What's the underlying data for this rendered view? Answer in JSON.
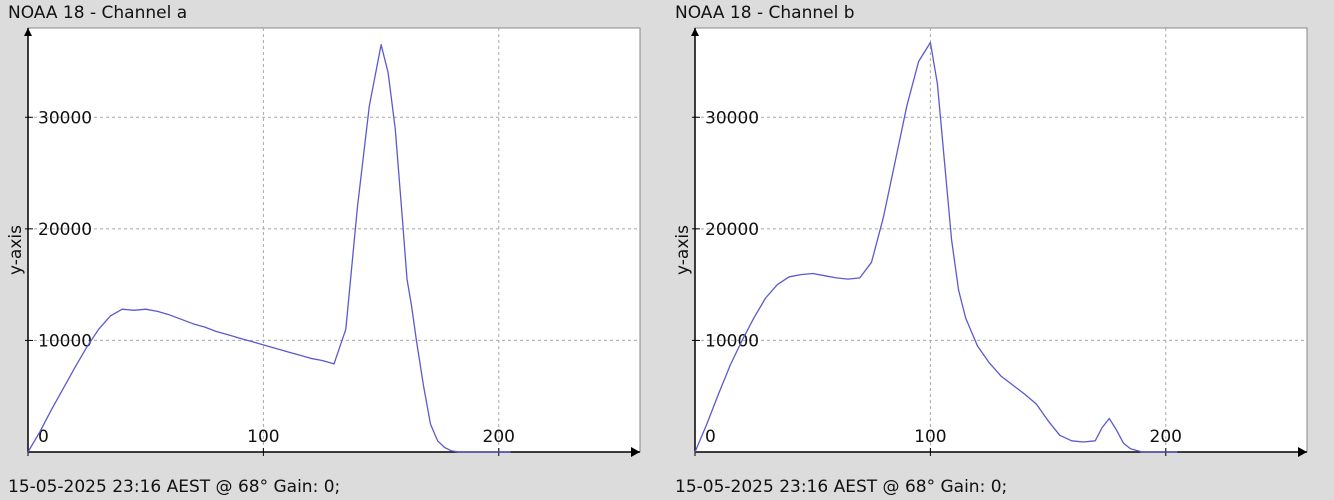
{
  "panels": [
    {
      "title": "NOAA 18 - Channel a",
      "footer": "15-05-2025 23:16 AEST @ 68° Gain: 0;"
    },
    {
      "title": "NOAA 18 - Channel b",
      "footer": "15-05-2025 23:16 AEST @ 68° Gain: 0;"
    }
  ],
  "colors": {
    "background": "#dcdcdc",
    "plot_background": "#ffffff",
    "line": "#5a5ad0",
    "grid": "#a8a8a8",
    "axis": "#000000"
  },
  "chart_data": [
    {
      "type": "line",
      "title": "NOAA 18 - Channel a",
      "xlabel": "",
      "ylabel": "y-axis",
      "xlim": [
        0,
        260
      ],
      "ylim": [
        0,
        38000
      ],
      "x_ticks": [
        0,
        100,
        200
      ],
      "y_ticks": [
        10000,
        20000,
        30000
      ],
      "grid": true,
      "series": [
        {
          "x": [
            0,
            5,
            10,
            15,
            20,
            25,
            30,
            35,
            40,
            45,
            50,
            55,
            60,
            65,
            70,
            75,
            80,
            85,
            90,
            95,
            100,
            105,
            110,
            115,
            120,
            125,
            130,
            135,
            140,
            145,
            150,
            153,
            156,
            159,
            161,
            163,
            165,
            168,
            171,
            174,
            177,
            180,
            183,
            186,
            190,
            195,
            200,
            205
          ],
          "y": [
            0,
            1800,
            3800,
            5700,
            7600,
            9400,
            11000,
            12200,
            12800,
            12700,
            12800,
            12600,
            12300,
            11900,
            11500,
            11200,
            10800,
            10500,
            10200,
            9900,
            9600,
            9300,
            9000,
            8700,
            8400,
            8200,
            7900,
            11000,
            22000,
            31000,
            36500,
            34000,
            29000,
            21000,
            15500,
            13000,
            10000,
            6000,
            2500,
            1000,
            400,
            100,
            0,
            0,
            0,
            0,
            0,
            0
          ]
        }
      ]
    },
    {
      "type": "line",
      "title": "NOAA 18 - Channel b",
      "xlabel": "",
      "ylabel": "y-axis",
      "xlim": [
        0,
        260
      ],
      "ylim": [
        0,
        38000
      ],
      "x_ticks": [
        0,
        100,
        200
      ],
      "y_ticks": [
        10000,
        20000,
        30000
      ],
      "grid": true,
      "series": [
        {
          "x": [
            0,
            5,
            10,
            15,
            20,
            25,
            30,
            35,
            40,
            45,
            50,
            55,
            60,
            65,
            70,
            75,
            80,
            85,
            90,
            95,
            100,
            103,
            106,
            109,
            112,
            115,
            120,
            125,
            130,
            135,
            140,
            145,
            150,
            155,
            160,
            165,
            170,
            173,
            176,
            179,
            182,
            185,
            190,
            195,
            200,
            205
          ],
          "y": [
            0,
            2500,
            5200,
            7800,
            10000,
            12000,
            13800,
            15000,
            15700,
            15900,
            16000,
            15800,
            15600,
            15500,
            15600,
            17000,
            21000,
            26000,
            31000,
            35000,
            36700,
            33000,
            26000,
            19000,
            14500,
            12000,
            9500,
            8000,
            6800,
            6000,
            5200,
            4300,
            2800,
            1500,
            1000,
            900,
            1000,
            2200,
            3000,
            2000,
            800,
            300,
            0,
            0,
            0,
            0
          ]
        }
      ]
    }
  ]
}
